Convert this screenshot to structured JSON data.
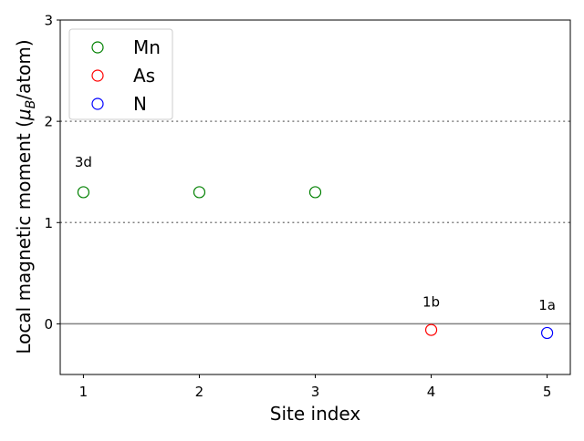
{
  "chart_data": {
    "type": "scatter",
    "title": "",
    "xlabel": "Site index",
    "ylabel_prefix": "Local magnetic moment (",
    "ylabel_mu": "μ",
    "ylabel_sub": "B",
    "ylabel_suffix": "/atom)",
    "xlim": [
      0.8,
      5.2
    ],
    "ylim": [
      -0.5,
      3.0
    ],
    "xticks": [
      1,
      2,
      3,
      4,
      5
    ],
    "yticks": [
      0,
      1,
      2,
      3
    ],
    "hlines": [
      {
        "y": 0,
        "style": "solid",
        "color": "#808080"
      },
      {
        "y": 1,
        "style": "dotted",
        "color": "#808080"
      },
      {
        "y": 2,
        "style": "dotted",
        "color": "#808080"
      }
    ],
    "legend_position": "top-left",
    "marker": "open-circle",
    "series": [
      {
        "name": "Mn",
        "color": "#008000",
        "points": [
          {
            "x": 1,
            "y": 1.3
          },
          {
            "x": 2,
            "y": 1.3
          },
          {
            "x": 3,
            "y": 1.3
          }
        ]
      },
      {
        "name": "As",
        "color": "#ff0000",
        "points": [
          {
            "x": 4,
            "y": -0.06
          }
        ]
      },
      {
        "name": "N",
        "color": "#0000ff",
        "points": [
          {
            "x": 5,
            "y": -0.09
          }
        ]
      }
    ],
    "annotations": [
      {
        "text": "3d",
        "x": 1,
        "y": 1.55
      },
      {
        "text": "1b",
        "x": 4,
        "y": 0.17
      },
      {
        "text": "1a",
        "x": 5,
        "y": 0.14
      }
    ]
  }
}
